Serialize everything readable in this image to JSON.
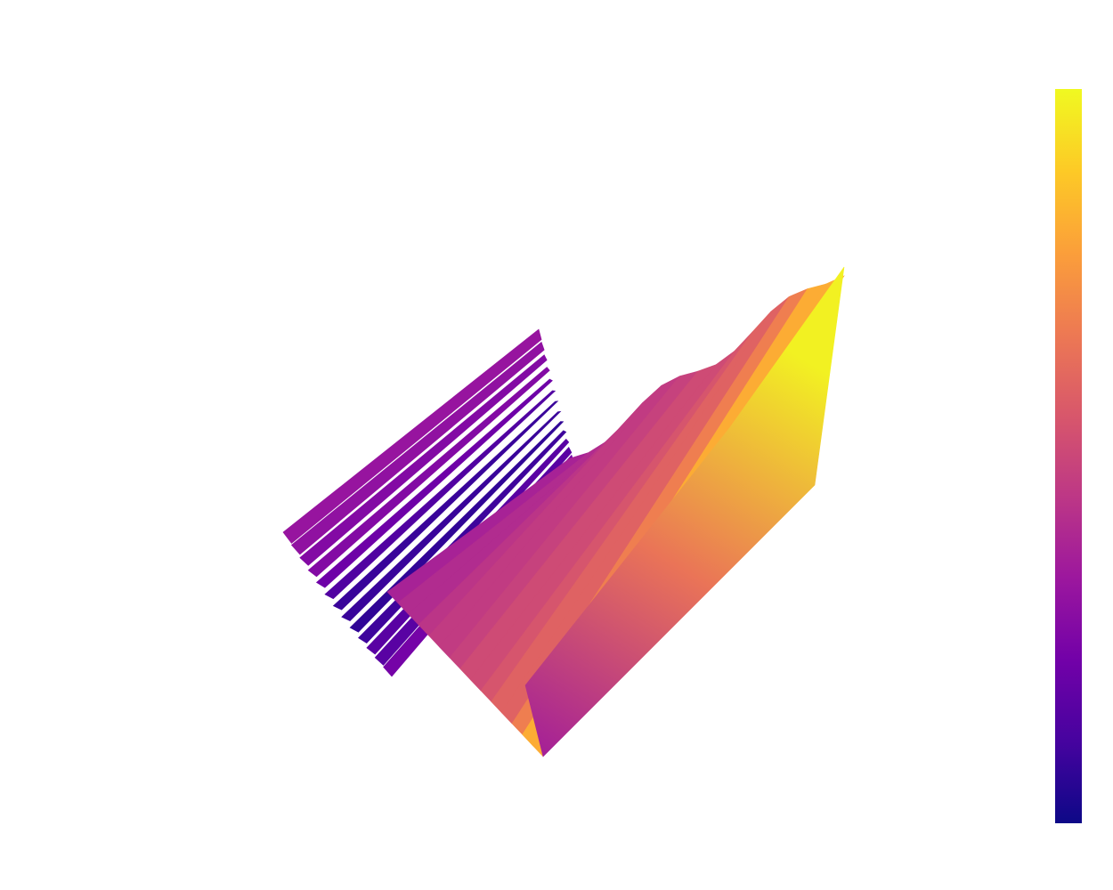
{
  "chart_data": {
    "type": "surface3d",
    "title": "",
    "xlabel": "",
    "ylabel": "",
    "zlabel": "",
    "colorscale": {
      "name": "Plasma",
      "stops": [
        "#0d0887",
        "#46039f",
        "#7201a8",
        "#9c179e",
        "#bd3786",
        "#d8576b",
        "#ed7953",
        "#fb9f3a",
        "#fdca26",
        "#f0f921"
      ]
    },
    "surfaces": [
      {
        "name": "",
        "value_range": [
          0.02,
          0.45
        ],
        "description_values": [
          0.3,
          0.28,
          0.24,
          0.18,
          0.1,
          0.04,
          0.02,
          0.05,
          0.12,
          0.2,
          0.32
        ]
      },
      {
        "name": "",
        "value_range": [
          0.35,
          1.0
        ],
        "description_values": [
          0.42,
          0.45,
          0.48,
          0.5,
          0.52,
          0.55,
          0.58,
          0.62,
          0.7,
          0.82,
          1.0
        ]
      }
    ],
    "colorbar": {
      "visible": true,
      "range": [
        0,
        1
      ],
      "tick_labels": []
    },
    "axes_visible": false,
    "grid": false,
    "legend": false
  }
}
